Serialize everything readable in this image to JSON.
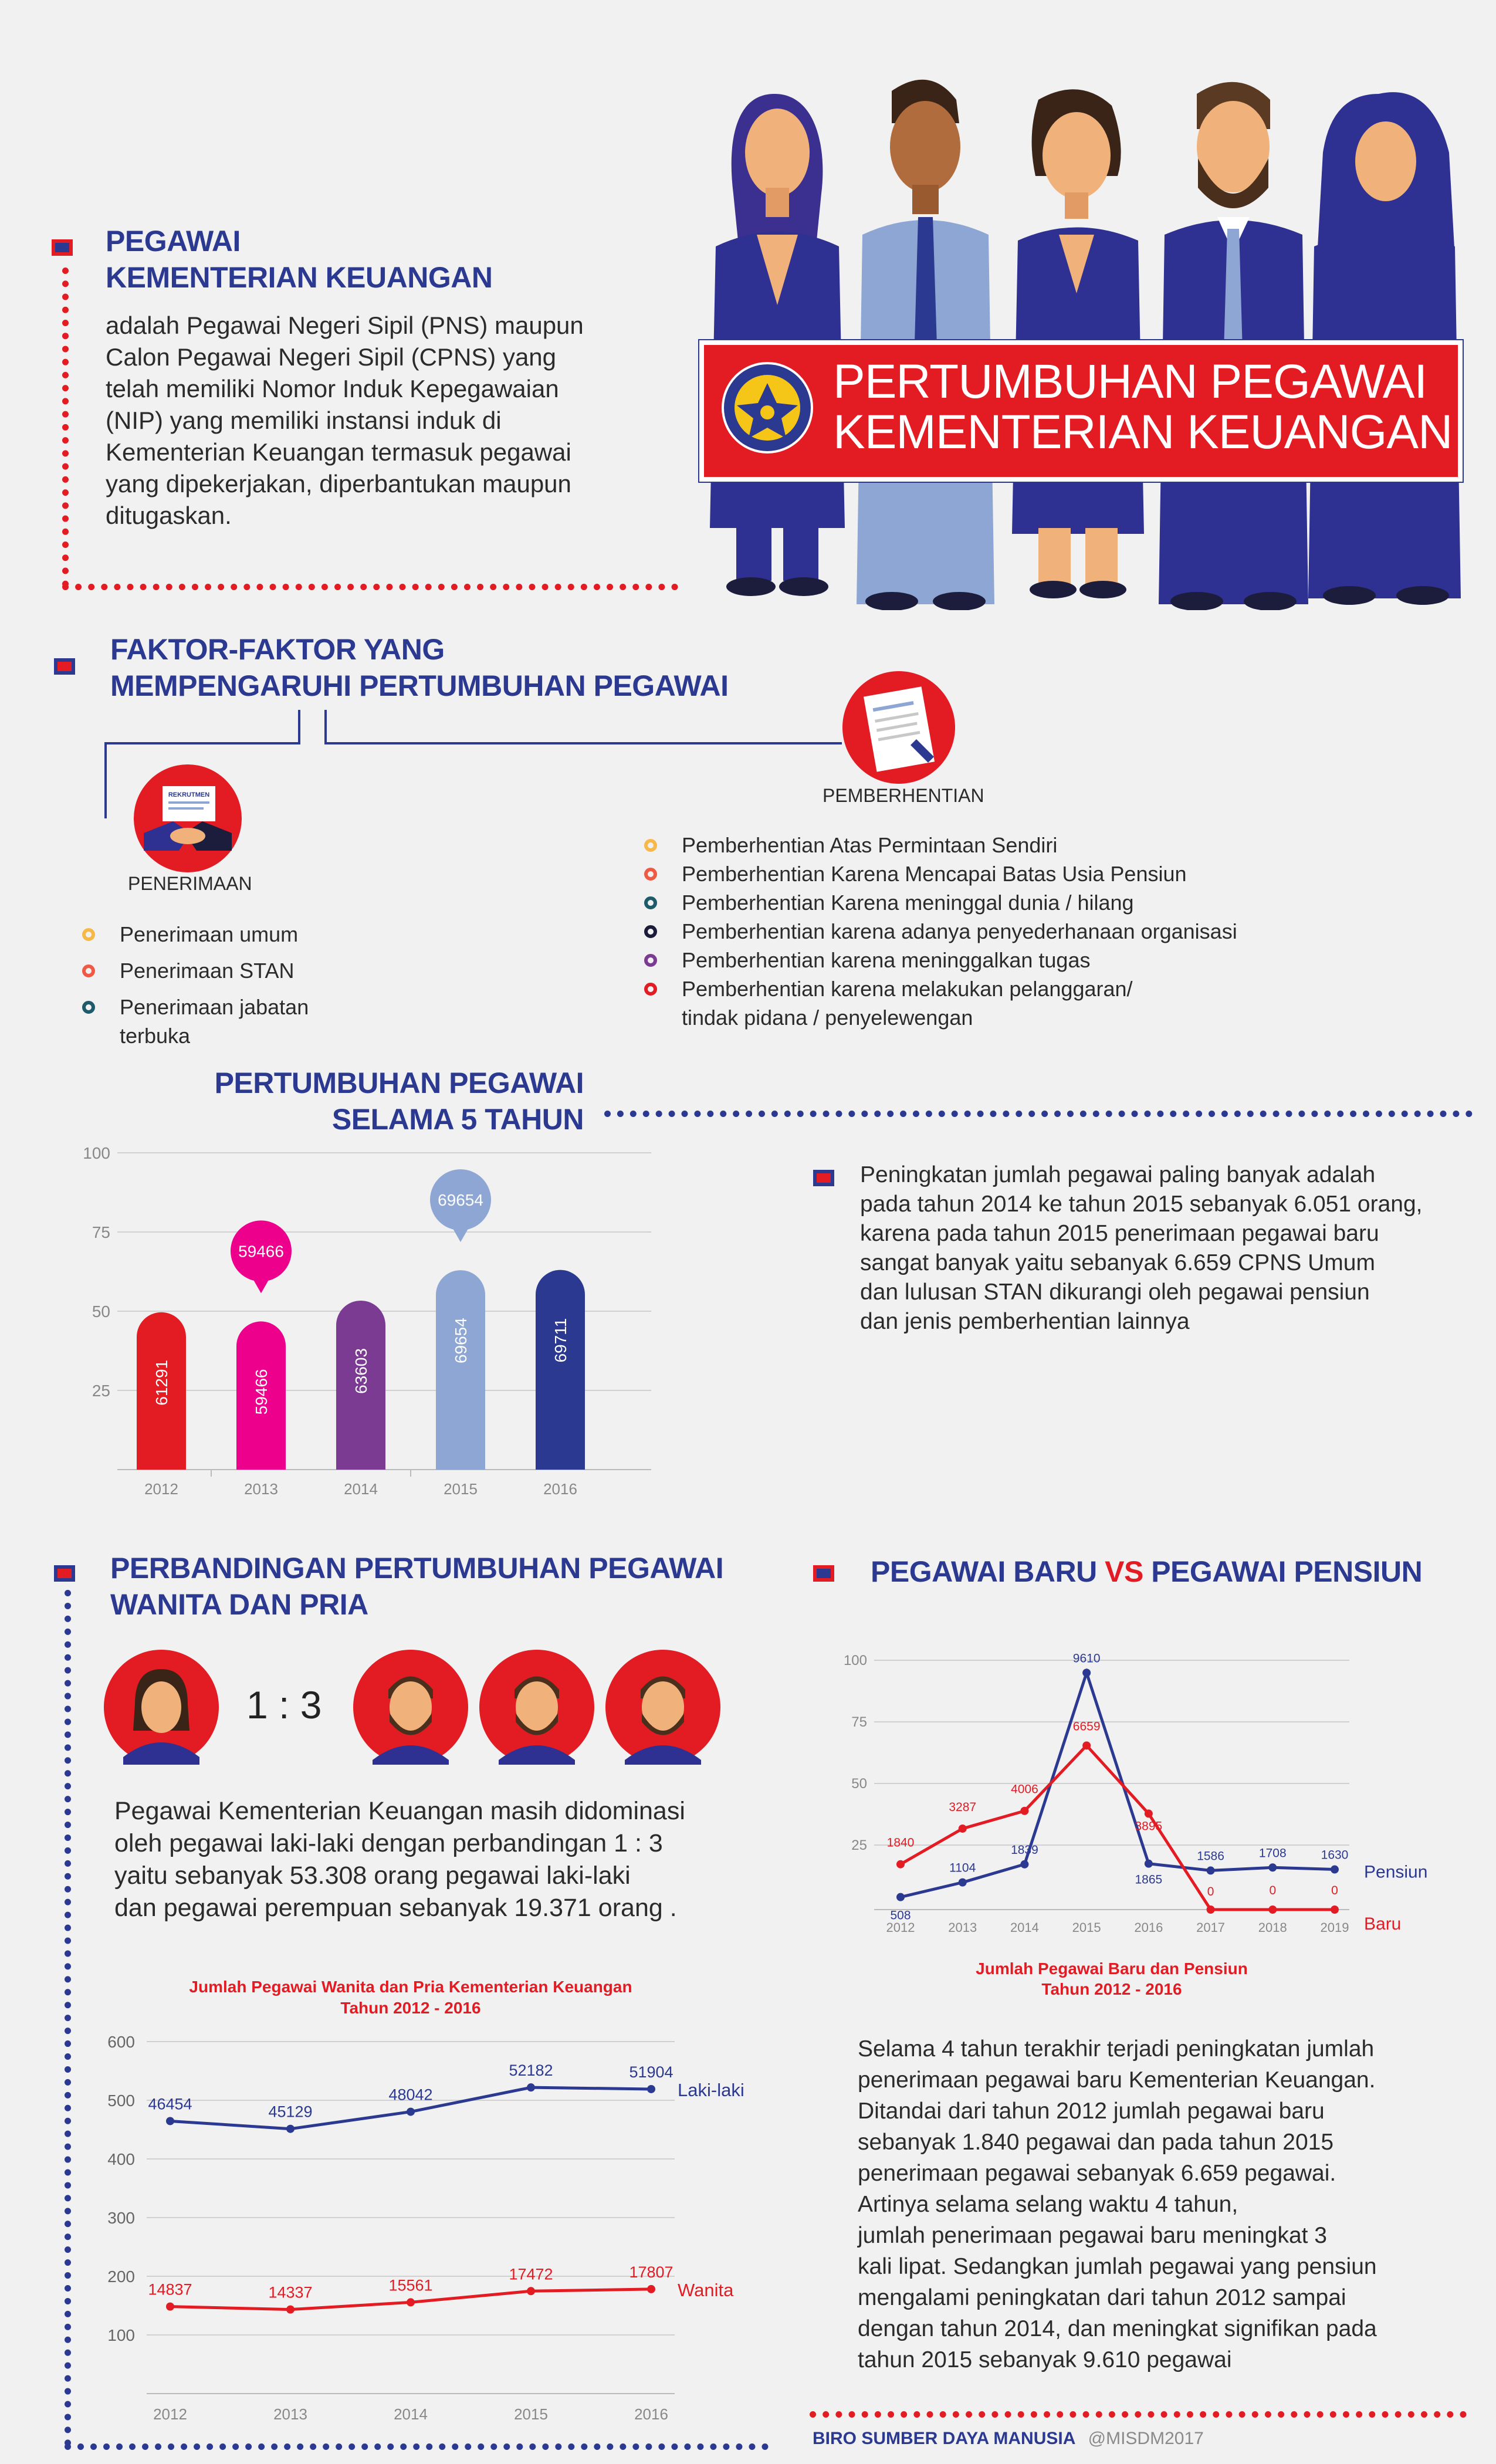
{
  "header": {
    "section_title_line1": "PEGAWAI",
    "section_title_line2": "KEMENTERIAN KEUANGAN",
    "definition_lines": [
      "adalah Pegawai Negeri Sipil (PNS) maupun",
      "Calon Pegawai Negeri Sipil (CPNS) yang",
      "telah memiliki Nomor Induk Kepegawaian",
      "(NIP) yang memiliki instansi induk di",
      "Kementerian Keuangan termasuk pegawai",
      "yang dipekerjakan, diperbantukan maupun",
      "ditugaskan."
    ],
    "banner_line1": "PERTUMBUHAN PEGAWAI",
    "banner_line2": "KEMENTERIAN KEUANGAN"
  },
  "factors": {
    "title_line1": "FAKTOR-FAKTOR YANG",
    "title_line2": "MEMPENGARUHI PERTUMBUHAN PEGAWAI",
    "recruit_doc_text": "REKRUTMEN",
    "penerimaan": {
      "label": "PENERIMAAN",
      "items": [
        {
          "text": "Penerimaan umum",
          "color": "#f7b84a"
        },
        {
          "text": "Penerimaan STAN",
          "color": "#ef5a45"
        },
        {
          "text": "Penerimaan jabatan terbuka",
          "color": "#1d5a6a"
        }
      ]
    },
    "pemberhentian": {
      "label": "PEMBERHENTIAN",
      "items": [
        {
          "text": "Pemberhentian Atas Permintaan Sendiri",
          "color": "#f7b84a"
        },
        {
          "text": "Pemberhentian Karena Mencapai Batas Usia Pensiun",
          "color": "#ef5a45"
        },
        {
          "text": "Pemberhentian Karena meninggal dunia / hilang",
          "color": "#1d5a6a"
        },
        {
          "text": "Pemberhentian karena adanya penyederhanaan organisasi",
          "color": "#1b1b3a"
        },
        {
          "text": "Pemberhentian karena meninggalkan tugas",
          "color": "#7b3b93"
        },
        {
          "text": "Pemberhentian karena melakukan pelanggaran/",
          "color": "#e31b23"
        },
        {
          "text": "tindak pidana / penyelewengan",
          "color": ""
        }
      ]
    }
  },
  "growth": {
    "title_line1": "PERTUMBUHAN PEGAWAI",
    "title_line2": "SELAMA 5 TAHUN",
    "description_lines": [
      "Peningkatan jumlah pegawai paling banyak adalah",
      "pada tahun 2014 ke tahun 2015 sebanyak 6.051 orang,",
      "karena pada tahun 2015 penerimaan pegawai baru",
      "sangat banyak yaitu sebanyak 6.659 CPNS Umum",
      "dan lulusan STAN dikurangi oleh pegawai pensiun",
      "dan jenis pemberhentian lainnya"
    ]
  },
  "gender": {
    "title_line1": "PERBANDINGAN PERTUMBUHAN PEGAWAI",
    "title_line2": "WANITA DAN PRIA",
    "ratio": "1 : 3",
    "description_lines": [
      "Pegawai Kementerian Keuangan masih didominasi",
      "oleh pegawai laki-laki dengan perbandingan 1 : 3",
      "yaitu sebanyak 53.308 orang pegawai laki-laki",
      "dan  pegawai perempuan sebanyak 19.371 orang ."
    ]
  },
  "newvsretire": {
    "title_part1": "PEGAWAI BARU ",
    "title_vs": "VS",
    "title_part2": " PEGAWAI PENSIUN",
    "description_lines": [
      "Selama 4 tahun terakhir terjadi peningkatan jumlah",
      "penerimaan pegawai baru Kementerian Keuangan.",
      "Ditandai dari tahun 2012 jumlah pegawai baru",
      "sebanyak 1.840 pegawai dan pada tahun 2015",
      "penerimaan pegawai sebanyak 6.659 pegawai.",
      "Artinya selama selang waktu 4 tahun,",
      "jumlah penerimaan pegawai baru meningkat 3",
      "kali lipat. Sedangkan jumlah pegawai yang pensiun",
      "mengalami peningkatan dari tahun 2012 sampai",
      "dengan tahun 2014, dan meningkat signifikan pada",
      "tahun 2015 sebanyak 9.610 pegawai"
    ]
  },
  "footer": {
    "text": "BIRO SUMBER DAYA MANUSIA",
    "handle": "@MISDM2017"
  },
  "colors": {
    "navy": "#2b3990",
    "red": "#e31b23",
    "magenta": "#ec008c",
    "purple": "#7b3b93",
    "lightblue": "#8ea6d4"
  },
  "chart_data": [
    {
      "type": "bar",
      "title": "",
      "categories": [
        "2012",
        "2013",
        "2014",
        "2015",
        "2016"
      ],
      "values": [
        61291,
        59466,
        63603,
        69654,
        69711
      ],
      "value_labels": [
        "61291",
        "59466",
        "63603",
        "69654",
        "69711"
      ],
      "yticks": [
        "100",
        "75",
        "50",
        "25"
      ],
      "colors": [
        "#e31b23",
        "#ec008c",
        "#7b3b93",
        "#8ea6d4",
        "#2b3990"
      ],
      "grid": true
    },
    {
      "type": "line",
      "title": "Jumlah Pegawai Baru dan Pensiun",
      "subtitle": "Tahun 2012 - 2016",
      "x": [
        "2012",
        "2013",
        "2014",
        "2015",
        "2016",
        "2017",
        "2018",
        "2019"
      ],
      "yticks": [
        "100",
        "75",
        "50",
        "25"
      ],
      "series": [
        {
          "name": "Pensiun",
          "color": "#2b3990",
          "values": [
            508,
            1104,
            1839,
            9610,
            1865,
            1586,
            1708,
            1630
          ],
          "labels": [
            "508",
            "1104",
            "1839",
            "9610",
            "1865",
            "1586",
            "1708",
            "1630"
          ]
        },
        {
          "name": "Baru",
          "color": "#e31b23",
          "values": [
            1840,
            3287,
            4006,
            6659,
            3895,
            0,
            0,
            0
          ],
          "labels": [
            "1840",
            "3287",
            "4006",
            "6659",
            "3895",
            "0",
            "0",
            "0"
          ]
        }
      ],
      "grid": true
    },
    {
      "type": "line",
      "title": "Jumlah Pegawai Wanita dan Pria Kementerian Keuangan",
      "subtitle": "Tahun 2012 - 2016",
      "x": [
        "2012",
        "2013",
        "2014",
        "2015",
        "2016"
      ],
      "yticks": [
        "600",
        "500",
        "400",
        "300",
        "200",
        "100"
      ],
      "series": [
        {
          "name": "Laki-laki",
          "color": "#2b3990",
          "values": [
            46454,
            45129,
            48042,
            52182,
            51904
          ],
          "labels": [
            "46454",
            "45129",
            "48042",
            "52182",
            "51904"
          ]
        },
        {
          "name": "Wanita",
          "color": "#e31b23",
          "values": [
            14837,
            14337,
            15561,
            17472,
            17807
          ],
          "labels": [
            "14837",
            "14337",
            "15561",
            "17472",
            "17807"
          ]
        }
      ],
      "grid": true
    }
  ]
}
